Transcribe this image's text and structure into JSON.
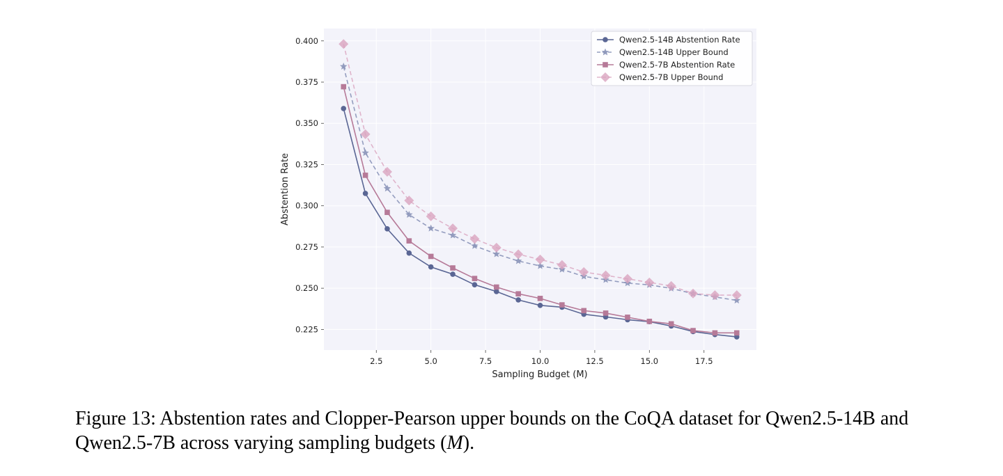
{
  "chart_data": {
    "type": "line",
    "title": "",
    "xlabel": "Sampling Budget (M)",
    "ylabel": "Abstention Rate",
    "xlim": [
      0.1,
      19.9
    ],
    "ylim": [
      0.2125,
      0.4075
    ],
    "xticks": [
      2.5,
      5.0,
      7.5,
      10.0,
      12.5,
      15.0,
      17.5
    ],
    "xtick_labels": [
      "2.5",
      "5.0",
      "7.5",
      "10.0",
      "12.5",
      "15.0",
      "17.5"
    ],
    "yticks": [
      0.225,
      0.25,
      0.275,
      0.3,
      0.325,
      0.35,
      0.375,
      0.4
    ],
    "ytick_labels": [
      "0.225",
      "0.250",
      "0.275",
      "0.300",
      "0.325",
      "0.350",
      "0.375",
      "0.400"
    ],
    "grid": true,
    "legend_position": "top-right",
    "x": [
      1,
      2,
      3,
      4,
      5,
      6,
      7,
      8,
      9,
      10,
      11,
      12,
      13,
      14,
      15,
      16,
      17,
      18,
      19
    ],
    "series": [
      {
        "name": "Qwen2.5-14B Abstention Rate",
        "color": "#5a6694",
        "marker": "circle",
        "dashed": false,
        "opacity": 1,
        "values": [
          0.359,
          0.3075,
          0.286,
          0.2713,
          0.2629,
          0.2585,
          0.2521,
          0.248,
          0.2429,
          0.2396,
          0.2385,
          0.2342,
          0.2326,
          0.2309,
          0.2297,
          0.2271,
          0.2237,
          0.2219,
          0.2205
        ]
      },
      {
        "name": "Qwen2.5-14B Upper Bound",
        "color": "#8a93b8",
        "marker": "star",
        "dashed": true,
        "opacity": 0.9,
        "values": [
          0.3845,
          0.3321,
          0.3105,
          0.2946,
          0.2863,
          0.2821,
          0.2757,
          0.2707,
          0.2665,
          0.2635,
          0.2614,
          0.2572,
          0.2551,
          0.2531,
          0.252,
          0.2499,
          0.2467,
          0.2447,
          0.2426
        ]
      },
      {
        "name": "Qwen2.5-7B Abstention Rate",
        "color": "#b67a98",
        "marker": "square",
        "dashed": false,
        "opacity": 1,
        "values": [
          0.3722,
          0.3185,
          0.296,
          0.2787,
          0.2693,
          0.2623,
          0.2559,
          0.2507,
          0.2466,
          0.2438,
          0.2399,
          0.2364,
          0.2349,
          0.2324,
          0.2299,
          0.2284,
          0.2243,
          0.2229,
          0.2229
        ]
      },
      {
        "name": "Qwen2.5-7B Upper Bound",
        "color": "#d9a4bf",
        "marker": "diamond",
        "dashed": true,
        "opacity": 0.8,
        "values": [
          0.3981,
          0.3434,
          0.3206,
          0.3032,
          0.2936,
          0.2863,
          0.2799,
          0.2746,
          0.2706,
          0.2674,
          0.2641,
          0.2598,
          0.2578,
          0.2557,
          0.2535,
          0.2514,
          0.2468,
          0.2458,
          0.2458
        ]
      }
    ]
  },
  "caption": {
    "label": "Figure 13:",
    "text": "Abstention rates and Clopper-Pearson upper bounds on the CoQA dataset for Qwen2.5-14B and Qwen2.5-7B across varying sampling budgets (",
    "math": "M",
    "end": ")."
  }
}
